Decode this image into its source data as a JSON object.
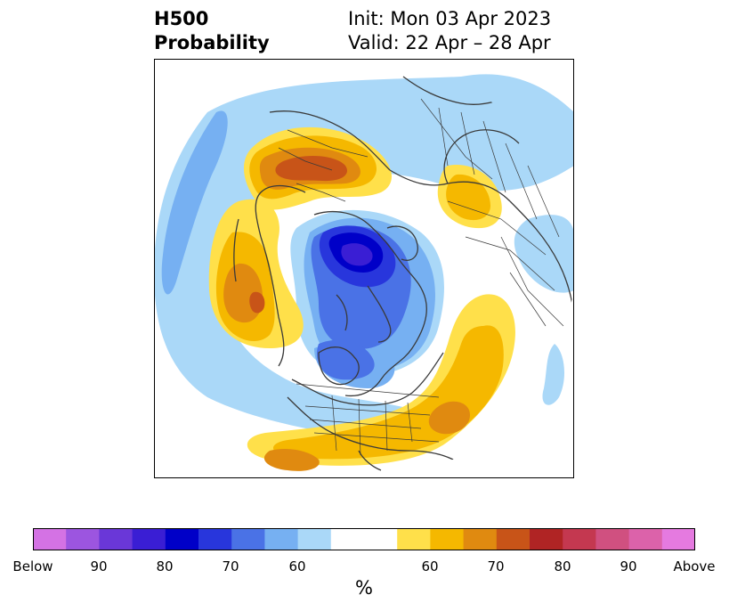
{
  "title": {
    "left_line1": "H500",
    "left_line2": "Probability",
    "right_line1": "Init: Mon 03 Apr 2023",
    "right_line2": "Valid: 22 Apr – 28 Apr"
  },
  "map": {
    "projection": "north-polar-stereographic",
    "layers": [
      "contour-fill",
      "country-borders",
      "state-borders",
      "coastlines"
    ]
  },
  "colorbar": {
    "colors": [
      "#d472e4",
      "#9c55e0",
      "#6a37d8",
      "#3a1ed4",
      "#0000c8",
      "#2836dc",
      "#4a72e6",
      "#76b0f2",
      "#aad8f8",
      "#ffffff",
      "#ffe04a",
      "#f5b800",
      "#e08a10",
      "#c85418",
      "#b02424",
      "#c43850",
      "#d05080",
      "#dc62aa",
      "#e57ae0"
    ],
    "tick_labels": [
      "Below",
      "90",
      "80",
      "70",
      "60",
      "60",
      "70",
      "80",
      "90",
      "Above"
    ],
    "unit": "%"
  }
}
